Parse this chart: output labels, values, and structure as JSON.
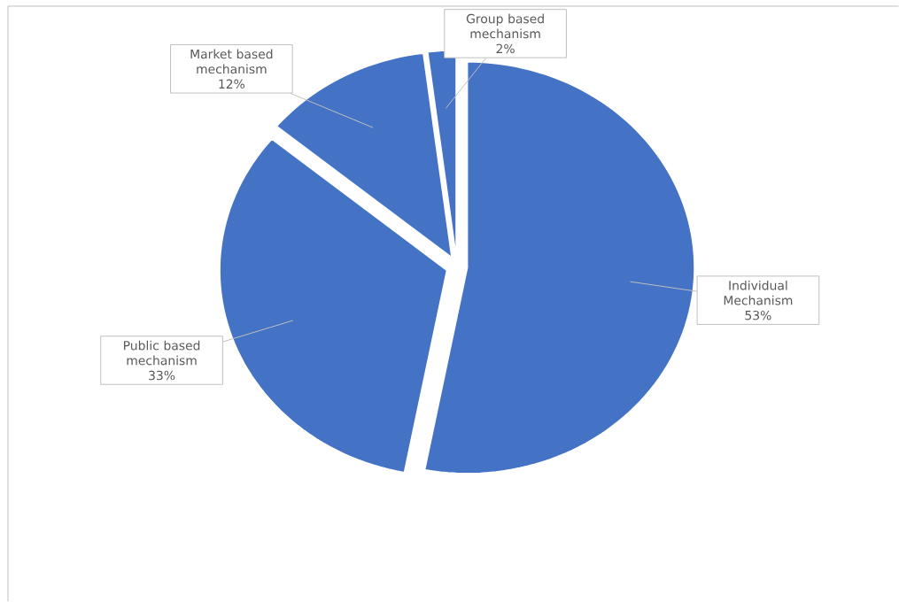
{
  "chart_data": {
    "type": "pie",
    "categories": [
      "Individual Mechanism",
      "Public based mechanism",
      "Market based mechanism",
      "Group based mechanism"
    ],
    "values": [
      53,
      33,
      12,
      2
    ],
    "value_labels": [
      "53%",
      "33%",
      "12%",
      "2%"
    ],
    "colors": [
      "#4472c4",
      "#4472c4",
      "#4472c4",
      "#4472c4"
    ]
  }
}
